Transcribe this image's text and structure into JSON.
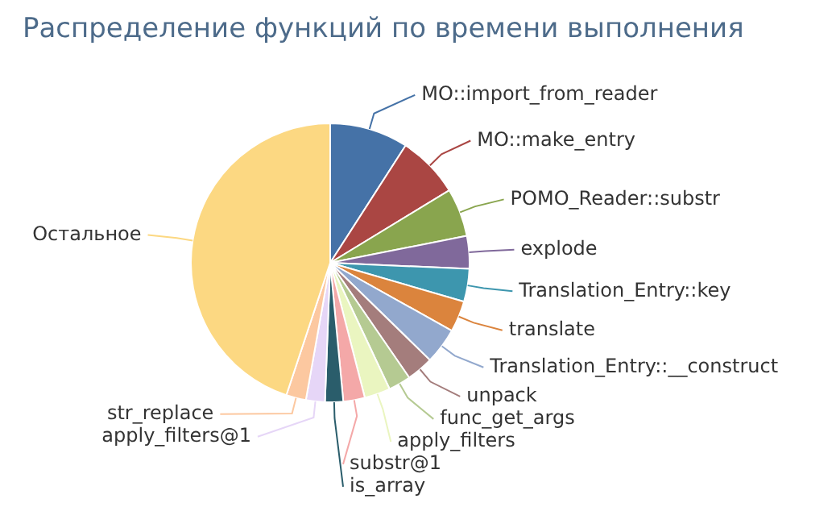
{
  "chart_data": {
    "type": "pie",
    "title": "Распределение функций по времени выполнения",
    "categories": [
      "MO::import_from_reader",
      "MO::make_entry",
      "POMO_Reader::substr",
      "explode",
      "Translation_Entry::key",
      "translate",
      "Translation_Entry::__construct",
      "unpack",
      "func_get_args",
      "apply_filters",
      "substr@1",
      "is_array",
      "apply_filters@1",
      "str_replace",
      "Остальное"
    ],
    "values": [
      9.1,
      7.2,
      5.6,
      3.8,
      3.8,
      3.6,
      4.2,
      3.1,
      2.6,
      3.0,
      2.5,
      2.1,
      2.2,
      2.3,
      44.9
    ],
    "colors": [
      "#4572a7",
      "#aa4643",
      "#89a54e",
      "#80699b",
      "#3d96ae",
      "#db843d",
      "#92a8cd",
      "#a47d7c",
      "#b5ca92",
      "#eaf5c0",
      "#f4a8a8",
      "#2a5d6b",
      "#e6d6f7",
      "#fcc8a0",
      "#fcd882"
    ]
  }
}
